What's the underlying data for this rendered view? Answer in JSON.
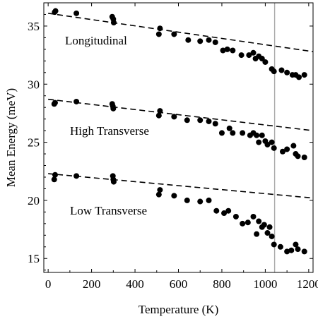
{
  "chart_data": {
    "type": "scatter",
    "xlabel": "Temperature (K)",
    "ylabel": "Mean Energy (meV)",
    "xlim": [
      -20,
      1220
    ],
    "ylim": [
      13.8,
      37.0
    ],
    "xticks": [
      0,
      200,
      400,
      600,
      800,
      1000,
      1200
    ],
    "yticks": [
      15,
      20,
      25,
      30,
      35
    ],
    "grid": false,
    "reference_line_x": 1043,
    "annotations": [
      "Longitudinal",
      "High Transverse",
      "Low Transverse"
    ],
    "series": [
      {
        "points": [
          [
            30,
            36.2
          ],
          [
            34,
            36.3
          ],
          [
            130,
            36.1
          ],
          [
            295,
            35.8
          ],
          [
            300,
            35.6
          ],
          [
            302,
            35.3
          ],
          [
            510,
            34.3
          ],
          [
            515,
            34.8
          ],
          [
            580,
            34.3
          ],
          [
            645,
            33.8
          ],
          [
            700,
            33.7
          ],
          [
            740,
            33.8
          ],
          [
            770,
            33.6
          ],
          [
            805,
            32.9
          ],
          [
            825,
            33.0
          ],
          [
            850,
            32.9
          ],
          [
            890,
            32.5
          ],
          [
            925,
            32.5
          ],
          [
            945,
            32.7
          ],
          [
            955,
            32.2
          ],
          [
            970,
            32.4
          ],
          [
            985,
            32.2
          ],
          [
            1000,
            31.9
          ],
          [
            1030,
            31.3
          ],
          [
            1040,
            31.1
          ],
          [
            1075,
            31.2
          ],
          [
            1100,
            31.0
          ],
          [
            1125,
            30.8
          ],
          [
            1140,
            30.8
          ],
          [
            1155,
            30.6
          ],
          [
            1180,
            30.8
          ]
        ],
        "fit": [
          [
            0,
            36.1
          ],
          [
            1220,
            32.8
          ]
        ]
      },
      {
        "points": [
          [
            28,
            28.3
          ],
          [
            32,
            28.4
          ],
          [
            130,
            28.5
          ],
          [
            295,
            28.3
          ],
          [
            298,
            28.1
          ],
          [
            300,
            27.9
          ],
          [
            510,
            27.3
          ],
          [
            515,
            27.7
          ],
          [
            580,
            27.2
          ],
          [
            640,
            26.9
          ],
          [
            700,
            26.9
          ],
          [
            740,
            26.8
          ],
          [
            770,
            26.6
          ],
          [
            800,
            25.8
          ],
          [
            835,
            26.2
          ],
          [
            850,
            25.8
          ],
          [
            895,
            25.8
          ],
          [
            930,
            25.6
          ],
          [
            945,
            25.8
          ],
          [
            960,
            25.6
          ],
          [
            970,
            25.0
          ],
          [
            985,
            25.6
          ],
          [
            1000,
            25.1
          ],
          [
            1010,
            24.8
          ],
          [
            1030,
            25.0
          ],
          [
            1040,
            24.5
          ],
          [
            1080,
            24.2
          ],
          [
            1100,
            24.4
          ],
          [
            1130,
            24.7
          ],
          [
            1140,
            24.0
          ],
          [
            1150,
            23.8
          ],
          [
            1180,
            23.7
          ]
        ],
        "fit": [
          [
            0,
            28.7
          ],
          [
            1220,
            26.0
          ]
        ]
      },
      {
        "points": [
          [
            28,
            21.8
          ],
          [
            32,
            22.2
          ],
          [
            130,
            22.1
          ],
          [
            298,
            22.1
          ],
          [
            300,
            21.8
          ],
          [
            302,
            21.6
          ],
          [
            510,
            20.5
          ],
          [
            515,
            20.9
          ],
          [
            580,
            20.4
          ],
          [
            640,
            20.0
          ],
          [
            700,
            19.9
          ],
          [
            740,
            20.0
          ],
          [
            775,
            19.1
          ],
          [
            810,
            18.9
          ],
          [
            830,
            19.1
          ],
          [
            865,
            18.6
          ],
          [
            895,
            18.0
          ],
          [
            920,
            18.1
          ],
          [
            945,
            18.6
          ],
          [
            960,
            17.1
          ],
          [
            970,
            18.2
          ],
          [
            985,
            17.7
          ],
          [
            995,
            17.9
          ],
          [
            1010,
            17.2
          ],
          [
            1020,
            17.7
          ],
          [
            1030,
            16.9
          ],
          [
            1040,
            16.2
          ],
          [
            1070,
            16.0
          ],
          [
            1100,
            15.6
          ],
          [
            1120,
            15.7
          ],
          [
            1140,
            16.2
          ],
          [
            1150,
            15.8
          ],
          [
            1180,
            15.6
          ]
        ],
        "fit": [
          [
            0,
            22.3
          ],
          [
            1220,
            20.2
          ]
        ]
      }
    ]
  }
}
